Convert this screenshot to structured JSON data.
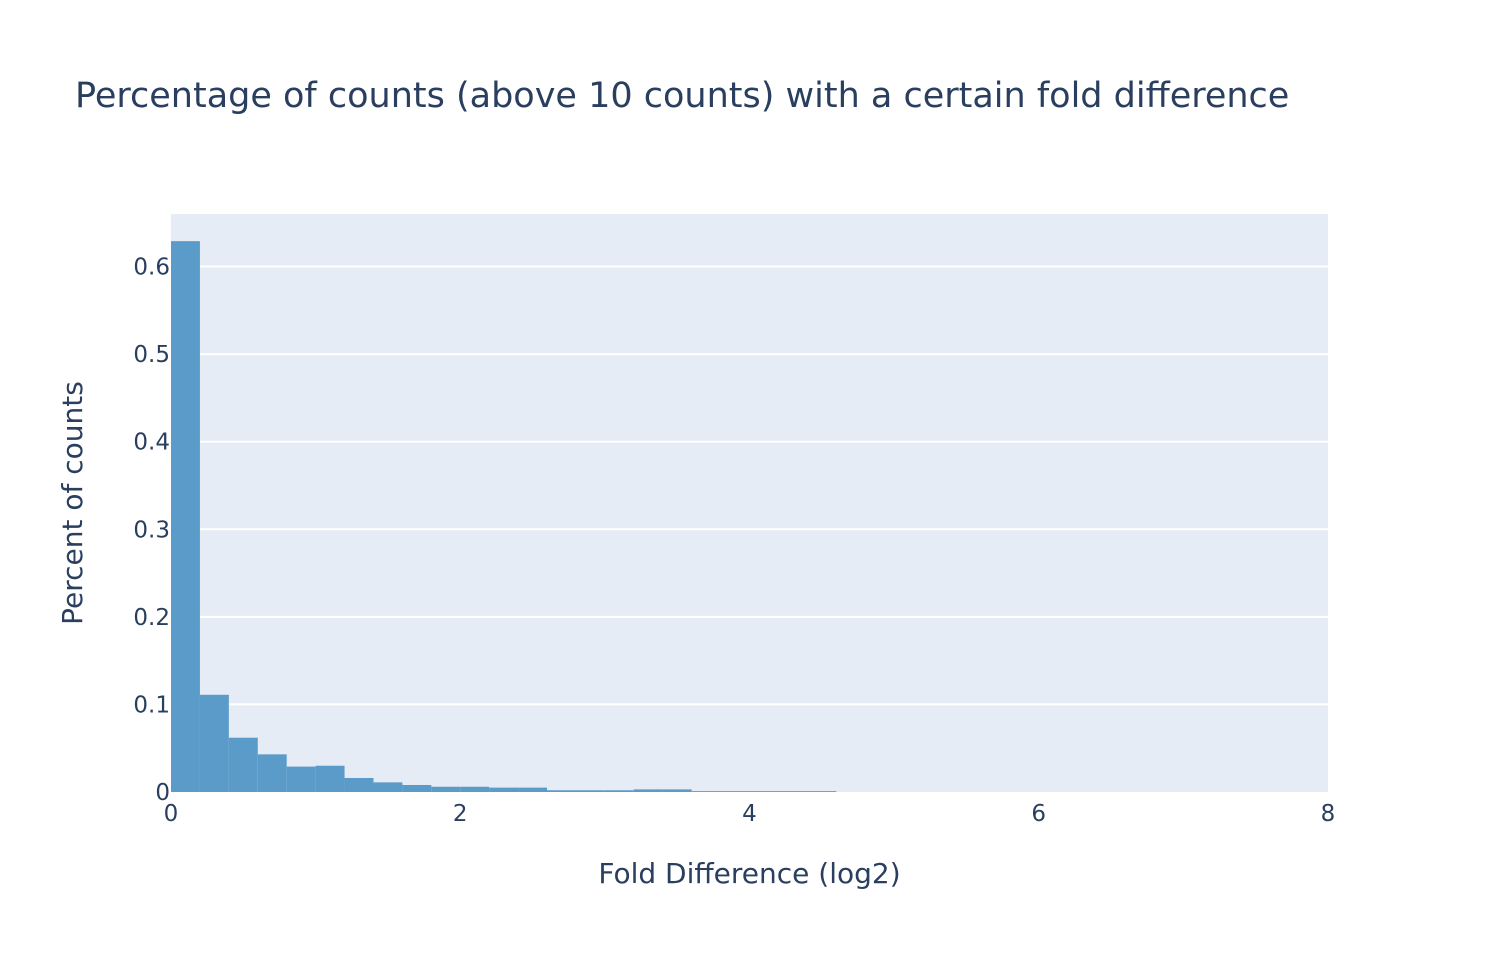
{
  "colors": {
    "plot_background": "#e5ecf6",
    "bar": "#5b9bc9",
    "text": "#2a3f5f",
    "grid": "#ffffff"
  },
  "chart_data": {
    "type": "bar",
    "title": "Percentage of counts (above 10 counts) with a certain fold difference",
    "xlabel": "Fold Difference (log2)",
    "ylabel": "Percent of counts",
    "xlim": [
      0,
      8
    ],
    "ylim": [
      0,
      0.66
    ],
    "grid": true,
    "legend": "none",
    "bin_width": 0.2,
    "bins": [
      {
        "x0": 0.0,
        "x1": 0.2,
        "value": 0.629
      },
      {
        "x0": 0.2,
        "x1": 0.4,
        "value": 0.111
      },
      {
        "x0": 0.4,
        "x1": 0.6,
        "value": 0.062
      },
      {
        "x0": 0.6,
        "x1": 0.8,
        "value": 0.043
      },
      {
        "x0": 0.8,
        "x1": 1.0,
        "value": 0.029
      },
      {
        "x0": 1.0,
        "x1": 1.2,
        "value": 0.03
      },
      {
        "x0": 1.2,
        "x1": 1.4,
        "value": 0.016
      },
      {
        "x0": 1.4,
        "x1": 1.6,
        "value": 0.011
      },
      {
        "x0": 1.6,
        "x1": 1.8,
        "value": 0.008
      },
      {
        "x0": 1.8,
        "x1": 2.0,
        "value": 0.006
      },
      {
        "x0": 2.0,
        "x1": 2.2,
        "value": 0.006
      },
      {
        "x0": 2.2,
        "x1": 2.4,
        "value": 0.005
      },
      {
        "x0": 2.4,
        "x1": 2.6,
        "value": 0.005
      },
      {
        "x0": 2.6,
        "x1": 2.8,
        "value": 0.002
      },
      {
        "x0": 2.8,
        "x1": 3.0,
        "value": 0.002
      },
      {
        "x0": 3.0,
        "x1": 3.2,
        "value": 0.002
      },
      {
        "x0": 3.2,
        "x1": 3.4,
        "value": 0.003
      },
      {
        "x0": 3.4,
        "x1": 3.6,
        "value": 0.003
      },
      {
        "x0": 3.6,
        "x1": 3.8,
        "value": 0.001
      },
      {
        "x0": 3.8,
        "x1": 4.0,
        "value": 0.001
      },
      {
        "x0": 4.0,
        "x1": 4.2,
        "value": 0.001
      },
      {
        "x0": 4.2,
        "x1": 4.4,
        "value": 0.001
      },
      {
        "x0": 4.4,
        "x1": 4.6,
        "value": 0.001
      }
    ],
    "x_ticks": [
      {
        "value": 0,
        "label": "0"
      },
      {
        "value": 2,
        "label": "2"
      },
      {
        "value": 4,
        "label": "4"
      },
      {
        "value": 6,
        "label": "6"
      },
      {
        "value": 8,
        "label": "8"
      }
    ],
    "y_ticks": [
      {
        "value": 0,
        "label": "0"
      },
      {
        "value": 0.1,
        "label": "0.1"
      },
      {
        "value": 0.2,
        "label": "0.2"
      },
      {
        "value": 0.3,
        "label": "0.3"
      },
      {
        "value": 0.4,
        "label": "0.4"
      },
      {
        "value": 0.5,
        "label": "0.5"
      },
      {
        "value": 0.6,
        "label": "0.6"
      }
    ]
  }
}
